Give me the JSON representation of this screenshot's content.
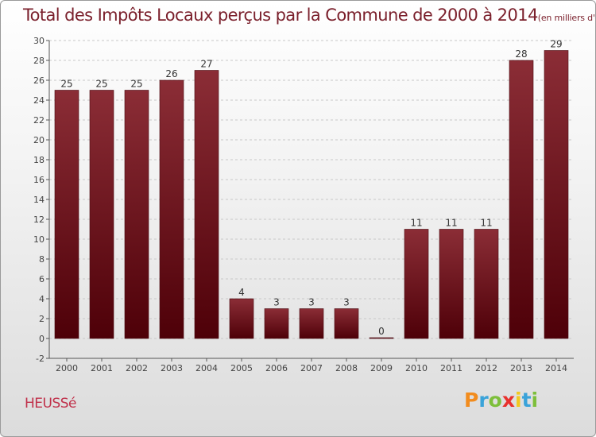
{
  "chart_data": {
    "type": "bar",
    "title": "Total des Impôts Locaux perçus par la Commune de 2000 à 2014",
    "unit_label": "(en milliers d'€)",
    "categories": [
      "2000",
      "2001",
      "2002",
      "2003",
      "2004",
      "2005",
      "2006",
      "2007",
      "2008",
      "2009",
      "2010",
      "2011",
      "2012",
      "2013",
      "2014"
    ],
    "values": [
      25,
      25,
      25,
      26,
      27,
      4,
      3,
      3,
      3,
      0,
      11,
      11,
      11,
      28,
      29
    ],
    "ylim": [
      -2,
      30
    ],
    "yticks": [
      -2,
      0,
      2,
      4,
      6,
      8,
      10,
      12,
      14,
      16,
      18,
      20,
      22,
      24,
      26,
      28,
      30
    ],
    "grid": "horizontal-dashed",
    "bar_color": "#6e1420",
    "bar_color_light": "#8b2d36",
    "xlabel": "",
    "ylabel": ""
  },
  "commune": "HEUSSé",
  "logo": {
    "letters": [
      "P",
      "r",
      "o",
      "x",
      "i",
      "t",
      "i"
    ],
    "colors": [
      "#f28c1e",
      "#3aa3d9",
      "#7dbf3b",
      "#e8312d",
      "#f2c81e",
      "#3aa3d9",
      "#7dbf3b"
    ]
  }
}
